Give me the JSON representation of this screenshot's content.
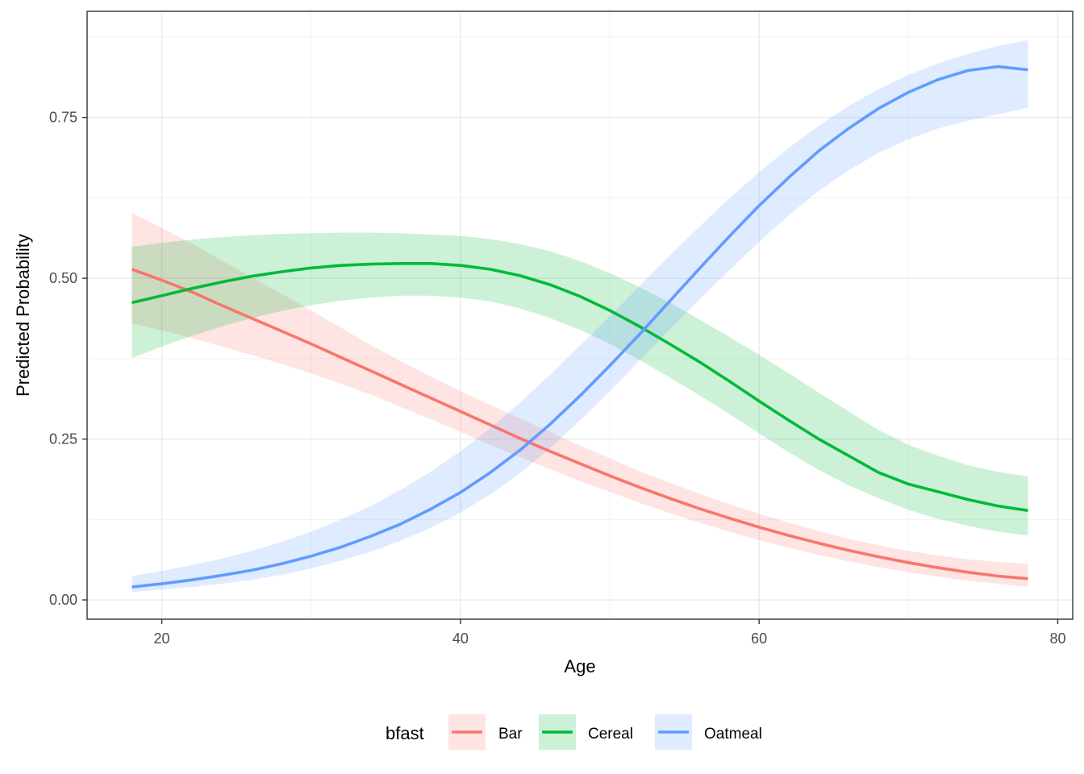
{
  "chart_data": {
    "type": "line",
    "xlabel": "Age",
    "ylabel": "Predicted Probability",
    "xlim": [
      15,
      81
    ],
    "ylim": [
      -0.03,
      0.915
    ],
    "xticks": [
      20,
      40,
      60,
      80
    ],
    "xtick_labels": [
      "20",
      "40",
      "60",
      "80"
    ],
    "yticks": [
      0.0,
      0.25,
      0.5,
      0.75
    ],
    "ytick_labels": [
      "0.00",
      "0.25",
      "0.50",
      "0.75"
    ],
    "grid": true,
    "legend_title": "bfast",
    "legend_position": "bottom",
    "x": [
      18,
      20,
      22,
      24,
      26,
      28,
      30,
      32,
      34,
      36,
      38,
      40,
      42,
      44,
      46,
      48,
      50,
      52,
      54,
      56,
      58,
      60,
      62,
      64,
      66,
      68,
      70,
      72,
      74,
      76,
      78
    ],
    "series": [
      {
        "name": "Bar",
        "color": "#F8766D",
        "values": [
          0.514,
          0.497,
          0.479,
          0.458,
          0.438,
          0.418,
          0.398,
          0.377,
          0.356,
          0.335,
          0.314,
          0.293,
          0.272,
          0.251,
          0.231,
          0.212,
          0.193,
          0.175,
          0.158,
          0.142,
          0.127,
          0.113,
          0.1,
          0.088,
          0.077,
          0.067,
          0.058,
          0.05,
          0.043,
          0.037,
          0.033
        ],
        "lower": [
          0.43,
          0.419,
          0.407,
          0.394,
          0.381,
          0.367,
          0.352,
          0.336,
          0.319,
          0.3,
          0.281,
          0.261,
          0.241,
          0.222,
          0.203,
          0.185,
          0.168,
          0.151,
          0.135,
          0.12,
          0.106,
          0.093,
          0.081,
          0.07,
          0.06,
          0.051,
          0.043,
          0.036,
          0.03,
          0.025,
          0.02
        ],
        "upper": [
          0.602,
          0.578,
          0.554,
          0.528,
          0.502,
          0.476,
          0.45,
          0.423,
          0.396,
          0.371,
          0.347,
          0.325,
          0.303,
          0.282,
          0.261,
          0.24,
          0.22,
          0.2,
          0.182,
          0.165,
          0.149,
          0.134,
          0.12,
          0.107,
          0.095,
          0.085,
          0.076,
          0.069,
          0.063,
          0.059,
          0.056
        ]
      },
      {
        "name": "Cereal",
        "color": "#00BA38",
        "values": [
          0.462,
          0.473,
          0.484,
          0.494,
          0.503,
          0.51,
          0.516,
          0.52,
          0.522,
          0.523,
          0.523,
          0.52,
          0.514,
          0.504,
          0.49,
          0.472,
          0.45,
          0.425,
          0.398,
          0.37,
          0.34,
          0.309,
          0.279,
          0.25,
          0.224,
          0.198,
          0.18,
          0.168,
          0.156,
          0.146,
          0.139
        ],
        "lower": [
          0.376,
          0.394,
          0.41,
          0.425,
          0.438,
          0.449,
          0.458,
          0.465,
          0.47,
          0.473,
          0.473,
          0.47,
          0.464,
          0.453,
          0.438,
          0.42,
          0.398,
          0.373,
          0.346,
          0.318,
          0.289,
          0.259,
          0.229,
          0.202,
          0.178,
          0.158,
          0.14,
          0.126,
          0.115,
          0.106,
          0.1
        ],
        "upper": [
          0.549,
          0.555,
          0.56,
          0.564,
          0.567,
          0.569,
          0.57,
          0.571,
          0.571,
          0.57,
          0.568,
          0.566,
          0.561,
          0.553,
          0.542,
          0.527,
          0.508,
          0.486,
          0.462,
          0.436,
          0.409,
          0.381,
          0.352,
          0.322,
          0.293,
          0.264,
          0.241,
          0.224,
          0.209,
          0.199,
          0.192
        ]
      },
      {
        "name": "Oatmeal",
        "color": "#619CFF",
        "values": [
          0.02,
          0.025,
          0.031,
          0.038,
          0.046,
          0.056,
          0.068,
          0.082,
          0.099,
          0.118,
          0.141,
          0.167,
          0.198,
          0.233,
          0.273,
          0.317,
          0.364,
          0.413,
          0.464,
          0.515,
          0.565,
          0.613,
          0.657,
          0.698,
          0.733,
          0.764,
          0.789,
          0.809,
          0.823,
          0.829,
          0.824
        ],
        "lower": [
          0.012,
          0.016,
          0.02,
          0.025,
          0.031,
          0.039,
          0.049,
          0.061,
          0.075,
          0.092,
          0.112,
          0.136,
          0.164,
          0.197,
          0.236,
          0.279,
          0.325,
          0.372,
          0.42,
          0.467,
          0.512,
          0.557,
          0.598,
          0.636,
          0.668,
          0.695,
          0.716,
          0.733,
          0.745,
          0.755,
          0.765
        ],
        "upper": [
          0.037,
          0.045,
          0.054,
          0.064,
          0.076,
          0.09,
          0.106,
          0.125,
          0.146,
          0.171,
          0.199,
          0.231,
          0.267,
          0.307,
          0.35,
          0.395,
          0.441,
          0.488,
          0.535,
          0.58,
          0.624,
          0.665,
          0.703,
          0.737,
          0.768,
          0.794,
          0.816,
          0.834,
          0.849,
          0.861,
          0.87
        ]
      }
    ]
  }
}
